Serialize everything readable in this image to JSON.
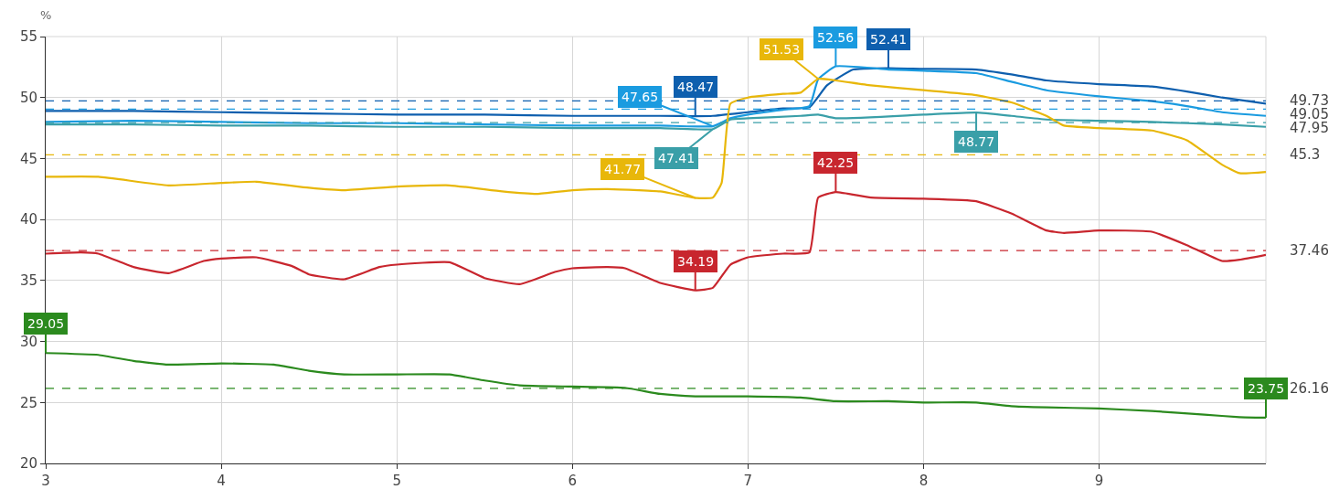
{
  "chart_data": {
    "type": "line",
    "ylabel": "%",
    "xlim": [
      3,
      9.95
    ],
    "xticks": [
      3,
      4,
      5,
      6,
      7,
      8,
      9
    ],
    "ylim": [
      20,
      55
    ],
    "yticks": [
      20,
      25,
      30,
      35,
      40,
      45,
      50,
      55
    ],
    "grid": true,
    "series": [
      {
        "color": "#0e5fae",
        "x": [
          3,
          3.5,
          4,
          4.5,
          5,
          5.5,
          6,
          6.5,
          6.7,
          6.8,
          7,
          7.2,
          7.35,
          7.45,
          7.6,
          7.8,
          8,
          8.3,
          8.5,
          8.7,
          9,
          9.3,
          9.5,
          9.7,
          9.95
        ],
        "values": [
          48.9,
          48.9,
          48.8,
          48.7,
          48.6,
          48.6,
          48.5,
          48.5,
          48.47,
          48.5,
          48.8,
          49.1,
          49.2,
          51.0,
          52.3,
          52.41,
          52.35,
          52.3,
          51.9,
          51.4,
          51.1,
          50.9,
          50.5,
          50.0,
          49.5
        ],
        "value_labels": [
          null,
          null,
          null,
          null,
          null,
          null,
          null,
          null,
          "48.47",
          null,
          null,
          null,
          null,
          null,
          null,
          "52.41",
          null,
          null,
          null,
          null,
          null,
          null,
          null,
          null,
          null
        ]
      },
      {
        "color": "#1a9be0",
        "x": [
          3,
          3.5,
          4,
          4.5,
          5,
          5.5,
          6,
          6.5,
          6.8,
          6.9,
          7,
          7.2,
          7.35,
          7.4,
          7.5,
          7.8,
          8,
          8.3,
          8.5,
          8.7,
          9,
          9.3,
          9.5,
          9.7,
          9.95
        ],
        "values": [
          48.0,
          48.1,
          48.0,
          47.9,
          47.9,
          47.8,
          47.7,
          47.7,
          47.65,
          48.3,
          48.6,
          49.0,
          49.3,
          51.5,
          52.56,
          52.3,
          52.2,
          52.0,
          51.3,
          50.6,
          50.1,
          49.7,
          49.3,
          48.8,
          48.5
        ],
        "value_labels": [
          null,
          null,
          null,
          null,
          null,
          null,
          null,
          null,
          "47.65",
          null,
          null,
          null,
          null,
          null,
          "52.56",
          null,
          null,
          null,
          null,
          null,
          null,
          null,
          null,
          null,
          null
        ]
      },
      {
        "color": "#3a9fa8",
        "x": [
          3,
          3.5,
          4,
          4.5,
          5,
          5.5,
          6,
          6.5,
          6.8,
          6.9,
          7,
          7.3,
          7.4,
          7.5,
          8,
          8.3,
          8.5,
          8.7,
          9,
          9.3,
          9.5,
          9.7,
          9.95
        ],
        "values": [
          47.8,
          47.8,
          47.7,
          47.7,
          47.6,
          47.6,
          47.5,
          47.5,
          47.41,
          48.2,
          48.3,
          48.5,
          48.6,
          48.3,
          48.6,
          48.77,
          48.5,
          48.2,
          48.1,
          48.0,
          47.9,
          47.8,
          47.6
        ],
        "value_labels": [
          null,
          null,
          null,
          null,
          null,
          null,
          null,
          null,
          "47.41",
          null,
          null,
          null,
          null,
          null,
          null,
          "48.77",
          null,
          null,
          null,
          null,
          null,
          null,
          null
        ]
      },
      {
        "color": "#e8b70a",
        "x": [
          3,
          3.3,
          3.7,
          4,
          4.2,
          4.5,
          4.7,
          5,
          5.3,
          5.6,
          5.8,
          6,
          6.2,
          6.5,
          6.7,
          6.8,
          6.85,
          6.9,
          7,
          7.2,
          7.3,
          7.4,
          7.5,
          7.7,
          8,
          8.3,
          8.5,
          8.7,
          8.8,
          9,
          9.3,
          9.5,
          9.7,
          9.8,
          9.95
        ],
        "values": [
          43.5,
          43.5,
          42.8,
          43.0,
          43.1,
          42.6,
          42.4,
          42.7,
          42.8,
          42.3,
          42.1,
          42.4,
          42.5,
          42.3,
          41.77,
          41.8,
          43.0,
          49.5,
          50.0,
          50.3,
          50.4,
          51.53,
          51.4,
          51.0,
          50.6,
          50.2,
          49.6,
          48.5,
          47.7,
          47.5,
          47.3,
          46.5,
          44.5,
          43.8,
          43.9
        ],
        "value_labels": [
          null,
          null,
          null,
          null,
          null,
          null,
          null,
          null,
          null,
          null,
          null,
          null,
          null,
          null,
          "41.77",
          null,
          null,
          null,
          null,
          null,
          null,
          "51.53",
          null,
          null,
          null,
          null,
          null,
          null,
          null,
          null,
          null,
          null,
          null,
          null,
          null
        ]
      },
      {
        "color": "#c8262e",
        "x": [
          3,
          3.2,
          3.3,
          3.5,
          3.7,
          3.9,
          4,
          4.2,
          4.4,
          4.5,
          4.7,
          4.9,
          5,
          5.3,
          5.5,
          5.7,
          5.9,
          6,
          6.2,
          6.3,
          6.5,
          6.7,
          6.8,
          6.9,
          7,
          7.2,
          7.35,
          7.4,
          7.5,
          7.7,
          8,
          8.3,
          8.5,
          8.7,
          8.8,
          9,
          9.3,
          9.5,
          9.7,
          9.8,
          9.95
        ],
        "values": [
          37.2,
          37.3,
          37.2,
          36.1,
          35.6,
          36.6,
          36.8,
          36.9,
          36.2,
          35.5,
          35.1,
          36.1,
          36.3,
          36.5,
          35.2,
          34.7,
          35.7,
          36.0,
          36.1,
          36.0,
          34.8,
          34.19,
          34.4,
          36.3,
          36.9,
          37.2,
          37.3,
          41.8,
          42.25,
          41.8,
          41.7,
          41.5,
          40.5,
          39.1,
          38.9,
          39.1,
          39.0,
          37.9,
          36.6,
          36.7,
          37.1
        ],
        "value_labels": [
          null,
          null,
          null,
          null,
          null,
          null,
          null,
          null,
          null,
          null,
          null,
          null,
          null,
          null,
          null,
          null,
          null,
          null,
          null,
          null,
          null,
          "34.19",
          null,
          null,
          null,
          null,
          null,
          null,
          "42.25",
          null,
          null,
          null,
          null,
          null,
          null,
          null,
          null,
          null,
          null,
          null,
          null
        ]
      },
      {
        "color": "#2b8a1e",
        "x": [
          3,
          3.3,
          3.5,
          3.7,
          4,
          4.3,
          4.5,
          4.7,
          5,
          5.3,
          5.5,
          5.7,
          6,
          6.3,
          6.5,
          6.7,
          7,
          7.3,
          7.5,
          7.8,
          8,
          8.3,
          8.5,
          8.7,
          9,
          9.3,
          9.6,
          9.8,
          9.95
        ],
        "values": [
          29.05,
          28.9,
          28.4,
          28.1,
          28.2,
          28.1,
          27.6,
          27.3,
          27.3,
          27.3,
          26.8,
          26.4,
          26.3,
          26.2,
          25.7,
          25.5,
          25.5,
          25.4,
          25.1,
          25.1,
          25.0,
          25.0,
          24.7,
          24.6,
          24.5,
          24.3,
          24.0,
          23.8,
          23.75
        ],
        "value_labels": [
          "29.05",
          null,
          null,
          null,
          null,
          null,
          null,
          null,
          null,
          null,
          null,
          null,
          null,
          null,
          null,
          null,
          null,
          null,
          null,
          null,
          null,
          null,
          null,
          null,
          null,
          null,
          null,
          null,
          "23.75"
        ]
      }
    ],
    "ref_lines": [
      {
        "axis": "y",
        "value": 49.73,
        "label": "49.73",
        "color": "#0e5fae",
        "line_style": "dashed"
      },
      {
        "axis": "y",
        "value": 49.05,
        "label": "49.05",
        "color": "#1a9be0",
        "line_style": "dashed"
      },
      {
        "axis": "y",
        "value": 47.95,
        "label": "47.95",
        "color": "#3a9fa8",
        "line_style": "dashed"
      },
      {
        "axis": "y",
        "value": 45.3,
        "label": "45.3",
        "color": "#e8b70a",
        "line_style": "dashed"
      },
      {
        "axis": "y",
        "value": 37.46,
        "label": "37.46",
        "color": "#c8262e",
        "line_style": "dashed"
      },
      {
        "axis": "y",
        "value": 26.16,
        "label": "26.16",
        "color": "#2b8a1e",
        "line_style": "dashed"
      }
    ]
  }
}
